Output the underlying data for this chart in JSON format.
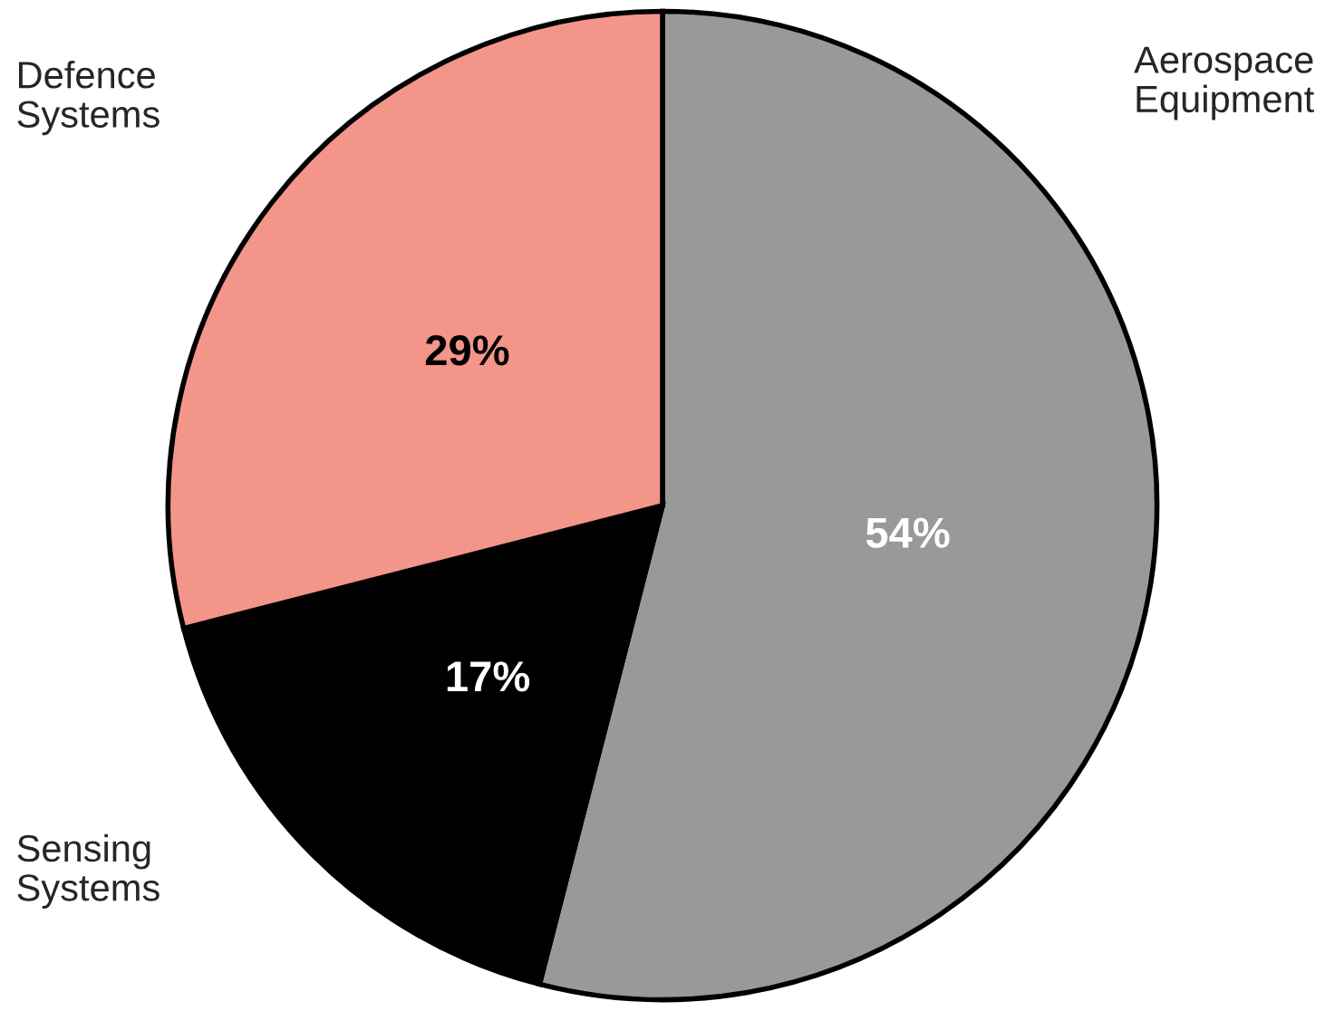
{
  "chart_data": {
    "type": "pie",
    "categories": [
      "Aerospace\nEquipment",
      "Sensing\nSystems",
      "Defence\nSystems"
    ],
    "values": [
      54,
      17,
      29
    ],
    "colors": [
      "#999999",
      "#000000",
      "#f4958a"
    ],
    "value_labels": [
      "54%",
      "17%",
      "29%"
    ]
  }
}
